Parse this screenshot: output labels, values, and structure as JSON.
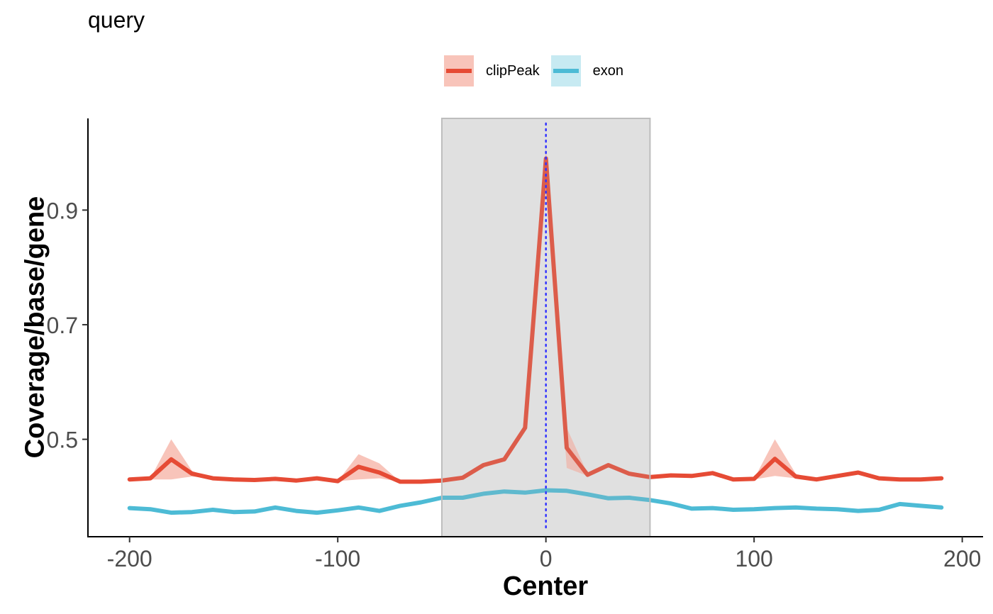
{
  "chart_data": {
    "type": "line",
    "title": "query",
    "xlabel": "Center",
    "ylabel": "Coverage/base/gene",
    "xlim": [
      -220,
      210
    ],
    "ylim": [
      0.33,
      1.06
    ],
    "x_ticks": [
      -200,
      -100,
      0,
      100,
      200
    ],
    "x_tick_labels": [
      "-200",
      "-100",
      "0",
      "100",
      "200"
    ],
    "y_ticks": [
      0.5,
      0.7,
      0.9
    ],
    "y_tick_labels": [
      "0.5",
      "0.7",
      "0.9"
    ],
    "highlight_region": [
      -50,
      50
    ],
    "center_line": 0,
    "grid": false,
    "legend_position": "top",
    "x": [
      -200,
      -190,
      -180,
      -170,
      -160,
      -150,
      -140,
      -130,
      -120,
      -110,
      -100,
      -90,
      -80,
      -70,
      -60,
      -50,
      -40,
      -30,
      -20,
      -10,
      0,
      10,
      20,
      30,
      40,
      50,
      60,
      70,
      80,
      90,
      100,
      110,
      120,
      130,
      140,
      150,
      160,
      170,
      180,
      190
    ],
    "series": [
      {
        "name": "clipPeak",
        "color": "#E64B35",
        "fill_color": "#F8C4BA",
        "values": [
          0.43,
          0.432,
          0.465,
          0.44,
          0.432,
          0.43,
          0.429,
          0.431,
          0.428,
          0.432,
          0.427,
          0.452,
          0.442,
          0.426,
          0.426,
          0.428,
          0.433,
          0.455,
          0.465,
          0.52,
          0.99,
          0.485,
          0.438,
          0.455,
          0.44,
          0.434,
          0.437,
          0.436,
          0.441,
          0.43,
          0.431,
          0.466,
          0.435,
          0.43,
          0.436,
          0.442,
          0.432,
          0.43,
          0.43,
          0.432
        ],
        "upper": [
          0.43,
          0.432,
          0.5,
          0.445,
          0.432,
          0.43,
          0.429,
          0.431,
          0.428,
          0.432,
          0.427,
          0.474,
          0.458,
          0.426,
          0.426,
          0.428,
          0.433,
          0.455,
          0.465,
          0.52,
          1.01,
          0.52,
          0.44,
          0.455,
          0.44,
          0.434,
          0.437,
          0.436,
          0.441,
          0.43,
          0.431,
          0.5,
          0.44,
          0.43,
          0.436,
          0.442,
          0.432,
          0.43,
          0.43,
          0.432
        ],
        "lower": [
          0.43,
          0.43,
          0.43,
          0.435,
          0.432,
          0.43,
          0.429,
          0.431,
          0.428,
          0.432,
          0.427,
          0.43,
          0.432,
          0.426,
          0.426,
          0.428,
          0.433,
          0.455,
          0.465,
          0.52,
          0.96,
          0.45,
          0.436,
          0.455,
          0.44,
          0.434,
          0.437,
          0.436,
          0.441,
          0.43,
          0.43,
          0.436,
          0.432,
          0.43,
          0.436,
          0.442,
          0.432,
          0.43,
          0.43,
          0.432
        ]
      },
      {
        "name": "exon",
        "color": "#4DBBD5",
        "fill_color": "#C7EAF2",
        "values": [
          0.38,
          0.378,
          0.372,
          0.373,
          0.377,
          0.373,
          0.374,
          0.381,
          0.375,
          0.372,
          0.376,
          0.381,
          0.375,
          0.384,
          0.39,
          0.398,
          0.398,
          0.405,
          0.409,
          0.407,
          0.411,
          0.41,
          0.404,
          0.397,
          0.398,
          0.394,
          0.388,
          0.379,
          0.38,
          0.377,
          0.378,
          0.38,
          0.381,
          0.379,
          0.378,
          0.375,
          0.377,
          0.387,
          0.384,
          0.381
        ]
      }
    ]
  }
}
